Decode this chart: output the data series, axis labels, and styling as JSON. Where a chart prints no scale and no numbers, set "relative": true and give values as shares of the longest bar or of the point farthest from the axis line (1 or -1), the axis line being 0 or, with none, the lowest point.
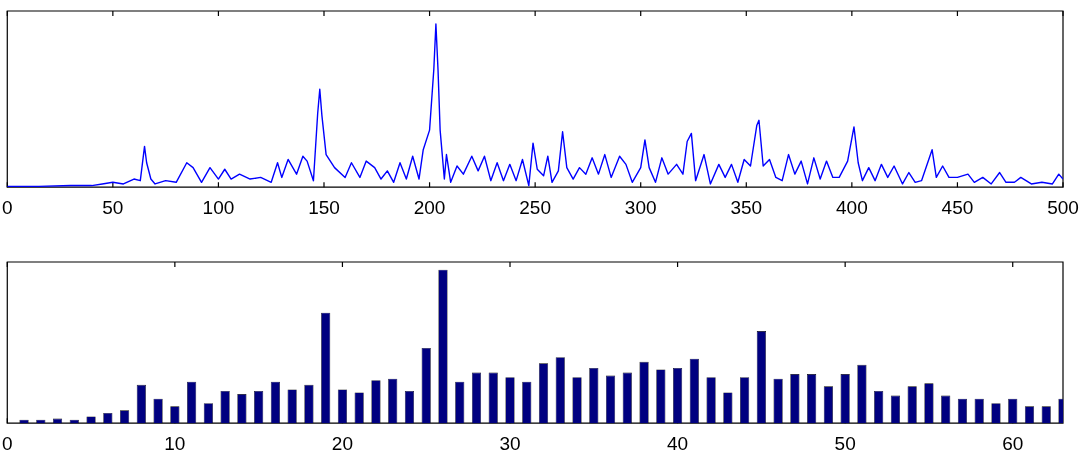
{
  "chart_data": [
    {
      "type": "line",
      "relative": true,
      "color": "#0000ff",
      "xlim": [
        0,
        500
      ],
      "xticks": [
        0,
        50,
        100,
        150,
        200,
        250,
        300,
        350,
        400,
        450,
        500
      ],
      "x": [
        0,
        15,
        30,
        40,
        45,
        50,
        55,
        60,
        63,
        65,
        66,
        68,
        70,
        75,
        80,
        85,
        88,
        92,
        96,
        100,
        103,
        106,
        110,
        115,
        120,
        125,
        128,
        130,
        133,
        137,
        140,
        142,
        145,
        147,
        148,
        149,
        151,
        155,
        160,
        163,
        167,
        170,
        174,
        177,
        180,
        183,
        186,
        189,
        192,
        195,
        197,
        200,
        202,
        203,
        204,
        205,
        207,
        208,
        210,
        213,
        216,
        220,
        223,
        226,
        229,
        232,
        235,
        238,
        241,
        244,
        247,
        249,
        251,
        254,
        256,
        258,
        261,
        263,
        265,
        268,
        271,
        274,
        277,
        280,
        283,
        286,
        290,
        293,
        296,
        300,
        302,
        304,
        307,
        310,
        313,
        317,
        320,
        322,
        324,
        326,
        330,
        333,
        337,
        340,
        343,
        346,
        349,
        352,
        355,
        356,
        358,
        361,
        364,
        367,
        370,
        373,
        376,
        379,
        382,
        385,
        388,
        391,
        394,
        398,
        401,
        403,
        405,
        408,
        411,
        414,
        417,
        420,
        424,
        427,
        430,
        433,
        438,
        440,
        443,
        446,
        450,
        455,
        458,
        462,
        466,
        470,
        473,
        477,
        480,
        485,
        490,
        495,
        498,
        500
      ],
      "values": [
        0.005,
        0.005,
        0.01,
        0.01,
        0.02,
        0.03,
        0.02,
        0.05,
        0.04,
        0.25,
        0.15,
        0.05,
        0.02,
        0.04,
        0.03,
        0.15,
        0.12,
        0.03,
        0.12,
        0.05,
        0.11,
        0.05,
        0.08,
        0.05,
        0.06,
        0.03,
        0.15,
        0.06,
        0.17,
        0.08,
        0.19,
        0.16,
        0.04,
        0.45,
        0.6,
        0.44,
        0.2,
        0.12,
        0.06,
        0.15,
        0.06,
        0.16,
        0.12,
        0.05,
        0.1,
        0.03,
        0.15,
        0.05,
        0.19,
        0.05,
        0.23,
        0.35,
        0.72,
        1,
        0.72,
        0.35,
        0.05,
        0.2,
        0.03,
        0.13,
        0.08,
        0.19,
        0.1,
        0.19,
        0.04,
        0.15,
        0.04,
        0.14,
        0.04,
        0.17,
        0.01,
        0.27,
        0.11,
        0.07,
        0.19,
        0.03,
        0.1,
        0.34,
        0.12,
        0.05,
        0.12,
        0.08,
        0.18,
        0.08,
        0.2,
        0.06,
        0.19,
        0.14,
        0.03,
        0.12,
        0.29,
        0.12,
        0.03,
        0.18,
        0.08,
        0.14,
        0.08,
        0.28,
        0.33,
        0.04,
        0.2,
        0.02,
        0.14,
        0.06,
        0.14,
        0.03,
        0.17,
        0.13,
        0.38,
        0.41,
        0.13,
        0.17,
        0.06,
        0.04,
        0.2,
        0.08,
        0.16,
        0.02,
        0.18,
        0.05,
        0.16,
        0.06,
        0.06,
        0.16,
        0.37,
        0.15,
        0.04,
        0.12,
        0.04,
        0.14,
        0.06,
        0.13,
        0.02,
        0.09,
        0.03,
        0.04,
        0.23,
        0.06,
        0.13,
        0.06,
        0.06,
        0.08,
        0.03,
        0.06,
        0.02,
        0.09,
        0.03,
        0.03,
        0.06,
        0.02,
        0.03,
        0.02,
        0.08,
        0.05
      ]
    },
    {
      "type": "bar",
      "relative": true,
      "color": "#000080",
      "xlim": [
        0,
        63
      ],
      "xticks": [
        0,
        10,
        20,
        30,
        40,
        50,
        60
      ],
      "x": [
        1,
        2,
        3,
        4,
        5,
        6,
        7,
        8,
        9,
        10,
        11,
        12,
        13,
        14,
        15,
        16,
        17,
        18,
        19,
        20,
        21,
        22,
        23,
        24,
        25,
        26,
        27,
        28,
        29,
        30,
        31,
        32,
        33,
        34,
        35,
        36,
        37,
        38,
        39,
        40,
        41,
        42,
        43,
        44,
        45,
        46,
        47,
        48,
        49,
        50,
        51,
        52,
        53,
        54,
        55,
        56,
        57,
        58,
        59,
        60,
        61,
        62,
        63
      ],
      "values": [
        0.023,
        0.023,
        0.03,
        0.023,
        0.044,
        0.067,
        0.084,
        0.25,
        0.16,
        0.11,
        0.27,
        0.13,
        0.21,
        0.19,
        0.21,
        0.27,
        0.22,
        0.25,
        0.72,
        0.22,
        0.2,
        0.28,
        0.29,
        0.21,
        0.49,
        1,
        0.27,
        0.33,
        0.33,
        0.3,
        0.27,
        0.39,
        0.43,
        0.3,
        0.36,
        0.31,
        0.33,
        0.4,
        0.35,
        0.36,
        0.42,
        0.3,
        0.2,
        0.3,
        0.6,
        0.29,
        0.32,
        0.32,
        0.24,
        0.32,
        0.38,
        0.21,
        0.18,
        0.24,
        0.26,
        0.18,
        0.16,
        0.16,
        0.13,
        0.16,
        0.11,
        0.11,
        0.16
      ]
    }
  ]
}
